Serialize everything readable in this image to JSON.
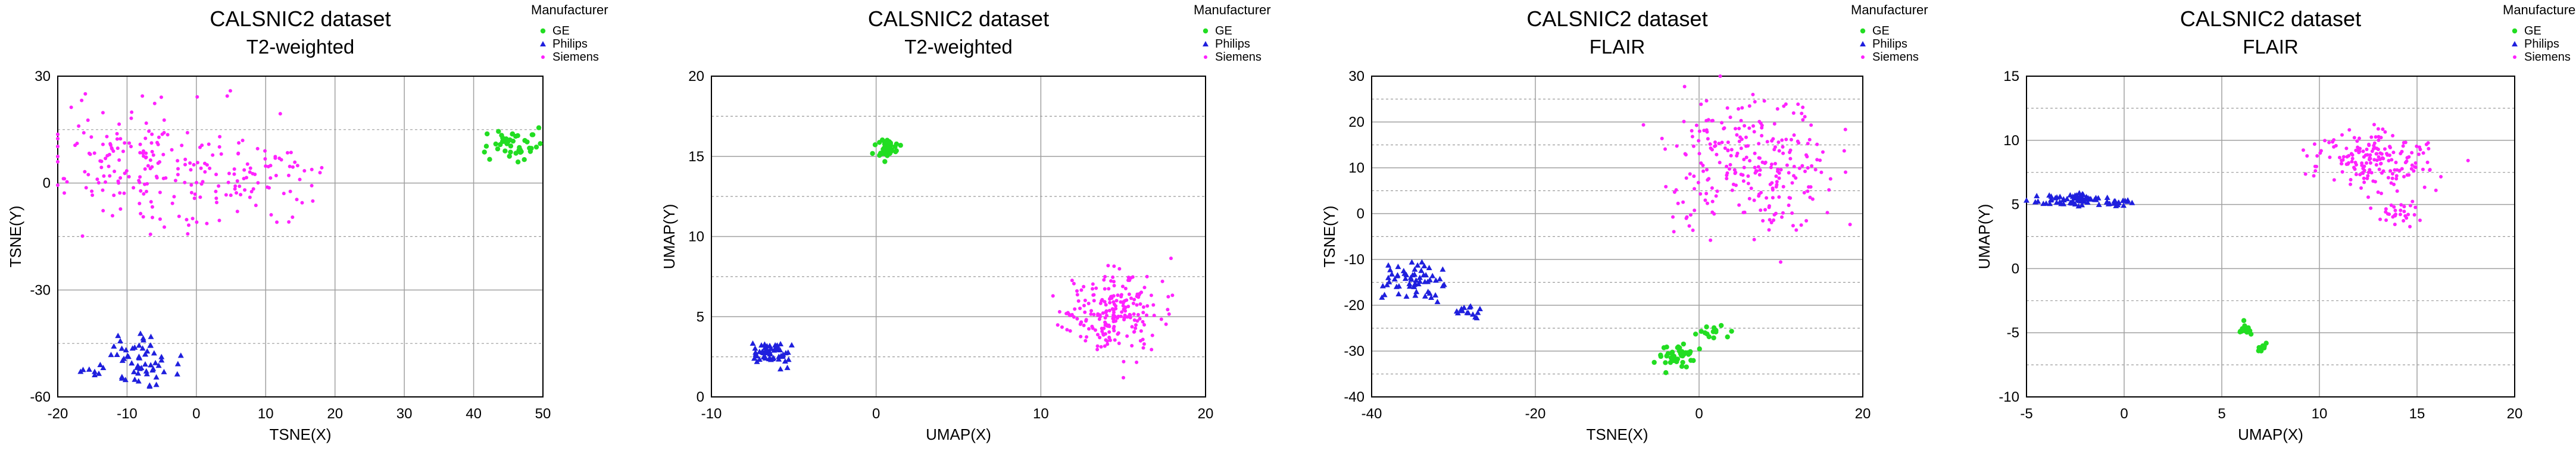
{
  "legend_title": "Manufacturer",
  "colors": {
    "GE": "#22dd22",
    "Philips": "#1f1fdd",
    "Siemens": "#ff22ff"
  },
  "chart_data": [
    {
      "type": "scatter",
      "title": "CALSNIC2 dataset",
      "subtitle": "T2-weighted",
      "xlabel": "TSNE(X)",
      "ylabel": "TSNE(Y)",
      "xlim": [
        -20,
        50
      ],
      "ylim": [
        -60,
        30
      ],
      "xticks": [
        -20,
        -10,
        0,
        10,
        20,
        30,
        40,
        50
      ],
      "yticks": [
        -60,
        -30,
        0,
        30
      ],
      "minor_y_step": 15,
      "grid": true,
      "legend": {
        "position": "top-right",
        "entries": [
          "GE",
          "Philips",
          "Siemens"
        ]
      },
      "series": [
        {
          "name": "GE",
          "marker": "circle",
          "clusters": [
            {
              "cx": 45.5,
              "cy": 11,
              "sx": 2.2,
              "sy": 2.2,
              "n": 45
            }
          ]
        },
        {
          "name": "Philips",
          "marker": "triangle",
          "clusters": [
            {
              "cx": -8,
              "cy": -50,
              "sx": 2.8,
              "sy": 3.2,
              "n": 60
            },
            {
              "cx": -15,
              "cy": -52.5,
              "sx": 1.5,
              "sy": 0.6,
              "n": 6
            }
          ]
        },
        {
          "name": "Siemens",
          "marker": "dot",
          "clusters": [
            {
              "cx": -12,
              "cy": 6,
              "sx": 5,
              "sy": 8,
              "n": 100
            },
            {
              "cx": -1,
              "cy": 4,
              "sx": 5,
              "sy": 8,
              "n": 90
            },
            {
              "cx": 10,
              "cy": 3,
              "sx": 3.5,
              "sy": 6,
              "n": 60
            }
          ]
        }
      ]
    },
    {
      "type": "scatter",
      "title": "CALSNIC2 dataset",
      "subtitle": "T2-weighted",
      "xlabel": "UMAP(X)",
      "ylabel": "UMAP(Y)",
      "xlim": [
        -10,
        20
      ],
      "ylim": [
        0,
        20
      ],
      "xticks": [
        -10,
        0,
        10,
        20
      ],
      "yticks": [
        0,
        5,
        10,
        15,
        20
      ],
      "minor_y_step": 2.5,
      "grid": true,
      "legend": {
        "position": "top-right",
        "entries": [
          "GE",
          "Philips",
          "Siemens"
        ]
      },
      "series": [
        {
          "name": "GE",
          "marker": "circle",
          "clusters": [
            {
              "cx": 0.7,
              "cy": 15.4,
              "sx": 0.3,
              "sy": 0.3,
              "n": 35
            }
          ]
        },
        {
          "name": "Philips",
          "marker": "triangle",
          "clusters": [
            {
              "cx": -6.3,
              "cy": 2.8,
              "sx": 0.5,
              "sy": 0.35,
              "n": 55
            }
          ]
        },
        {
          "name": "Siemens",
          "marker": "dot",
          "clusters": [
            {
              "cx": 14.5,
              "cy": 5.2,
              "sx": 1.5,
              "sy": 1.3,
              "n": 220
            }
          ]
        }
      ]
    },
    {
      "type": "scatter",
      "title": "CALSNIC2 dataset",
      "subtitle": "FLAIR",
      "xlabel": "TSNE(X)",
      "ylabel": "TSNE(Y)",
      "xlim": [
        -40,
        20
      ],
      "ylim": [
        -40,
        30
      ],
      "xticks": [
        -40,
        -20,
        0,
        20
      ],
      "yticks": [
        -40,
        -30,
        -20,
        -10,
        0,
        10,
        20,
        30
      ],
      "minor_y_step": 5,
      "grid": true,
      "legend": {
        "position": "top-right",
        "entries": [
          "GE",
          "Philips",
          "Siemens"
        ]
      },
      "series": [
        {
          "name": "GE",
          "marker": "circle",
          "clusters": [
            {
              "cx": -2.5,
              "cy": -31,
              "sx": 1.3,
              "sy": 1.4,
              "n": 40
            },
            {
              "cx": 1.5,
              "cy": -26,
              "sx": 1,
              "sy": 0.8,
              "n": 15
            }
          ]
        },
        {
          "name": "Philips",
          "marker": "triangle",
          "clusters": [
            {
              "cx": -35,
              "cy": -15,
              "sx": 2,
              "sy": 2.5,
              "n": 60
            },
            {
              "cx": -29,
              "cy": -21,
              "sx": 1.5,
              "sy": 1,
              "n": 15
            }
          ]
        },
        {
          "name": "Siemens",
          "marker": "dot",
          "clusters": [
            {
              "cx": 2,
              "cy": 12,
              "sx": 3,
              "sy": 7,
              "n": 120
            },
            {
              "cx": 10,
              "cy": 10,
              "sx": 3,
              "sy": 7,
              "n": 140
            }
          ]
        }
      ]
    },
    {
      "type": "scatter",
      "title": "CALSNIC2 dataset",
      "subtitle": "FLAIR",
      "xlabel": "UMAP(X)",
      "ylabel": "UMAP(Y)",
      "xlim": [
        -5,
        20
      ],
      "ylim": [
        -10,
        15
      ],
      "xticks": [
        -5,
        0,
        5,
        10,
        15,
        20
      ],
      "yticks": [
        -10,
        -5,
        0,
        5,
        10,
        15
      ],
      "minor_y_step": 2.5,
      "grid": true,
      "legend": {
        "position": "top-right",
        "entries": [
          "GE",
          "Philips",
          "Siemens"
        ]
      },
      "series": [
        {
          "name": "GE",
          "marker": "circle",
          "clusters": [
            {
              "cx": 6.3,
              "cy": -4.8,
              "sx": 0.2,
              "sy": 0.25,
              "n": 15
            },
            {
              "cx": 7.1,
              "cy": -6.1,
              "sx": 0.2,
              "sy": 0.2,
              "n": 10
            }
          ]
        },
        {
          "name": "Philips",
          "marker": "triangle",
          "clusters": [
            {
              "cx": -2.7,
              "cy": 5.4,
              "sx": 0.9,
              "sy": 0.25,
              "n": 65
            },
            {
              "cx": -0.3,
              "cy": 5.1,
              "sx": 0.3,
              "sy": 0.15,
              "n": 15
            }
          ]
        },
        {
          "name": "Siemens",
          "marker": "dot",
          "clusters": [
            {
              "cx": 13,
              "cy": 8.3,
              "sx": 1.5,
              "sy": 1.1,
              "n": 180
            },
            {
              "cx": 14,
              "cy": 4.2,
              "sx": 0.6,
              "sy": 0.4,
              "n": 30
            }
          ]
        }
      ]
    }
  ]
}
